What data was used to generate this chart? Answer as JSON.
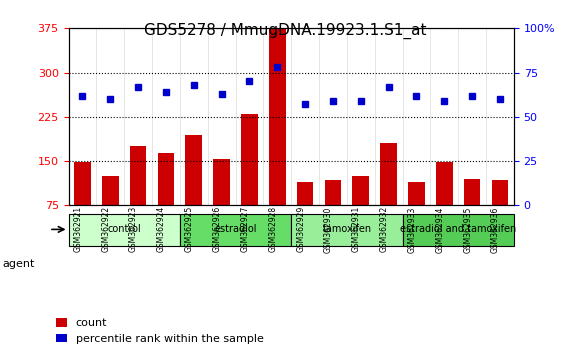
{
  "title": "GDS5278 / MmugDNA.19923.1.S1_at",
  "samples": [
    "GSM362921",
    "GSM362922",
    "GSM362923",
    "GSM362924",
    "GSM362925",
    "GSM362926",
    "GSM362927",
    "GSM362928",
    "GSM362929",
    "GSM362930",
    "GSM362931",
    "GSM362932",
    "GSM362933",
    "GSM362934",
    "GSM362935",
    "GSM362936"
  ],
  "counts": [
    148,
    125,
    175,
    163,
    195,
    153,
    230,
    375,
    115,
    118,
    125,
    180,
    115,
    148,
    120,
    118
  ],
  "percentiles": [
    62,
    60,
    67,
    64,
    68,
    63,
    70,
    78,
    57,
    59,
    59,
    67,
    62,
    59,
    62,
    60
  ],
  "ylim_left": [
    75,
    375
  ],
  "ylim_right": [
    0,
    100
  ],
  "yticks_left": [
    75,
    150,
    225,
    300,
    375
  ],
  "yticks_right": [
    0,
    25,
    50,
    75,
    100
  ],
  "bar_color": "#cc0000",
  "dot_color": "#0000cc",
  "grid_color": "#000000",
  "bg_color": "#ffffff",
  "plot_bg": "#ffffff",
  "groups": [
    {
      "label": "control",
      "start": 0,
      "end": 4,
      "color": "#ccffcc"
    },
    {
      "label": "estradiol",
      "start": 4,
      "end": 8,
      "color": "#66dd66"
    },
    {
      "label": "tamoxifen",
      "start": 8,
      "end": 12,
      "color": "#99ee99"
    },
    {
      "label": "estradiol and tamoxifen",
      "start": 12,
      "end": 16,
      "color": "#55cc55"
    }
  ],
  "xlabel_fontsize": 7,
  "title_fontsize": 11,
  "tick_fontsize": 8,
  "legend_fontsize": 8,
  "agent_label": "agent",
  "bar_width": 0.6
}
